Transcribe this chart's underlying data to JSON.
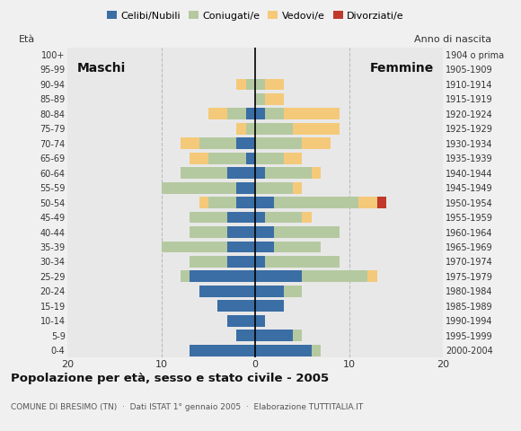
{
  "age_groups": [
    "0-4",
    "5-9",
    "10-14",
    "15-19",
    "20-24",
    "25-29",
    "30-34",
    "35-39",
    "40-44",
    "45-49",
    "50-54",
    "55-59",
    "60-64",
    "65-69",
    "70-74",
    "75-79",
    "80-84",
    "85-89",
    "90-94",
    "95-99",
    "100+"
  ],
  "birth_years": [
    "2000-2004",
    "1995-1999",
    "1990-1994",
    "1985-1989",
    "1980-1984",
    "1975-1979",
    "1970-1974",
    "1965-1969",
    "1960-1964",
    "1955-1959",
    "1950-1954",
    "1945-1949",
    "1940-1944",
    "1935-1939",
    "1930-1934",
    "1925-1929",
    "1920-1924",
    "1915-1919",
    "1910-1914",
    "1905-1909",
    "1904 o prima"
  ],
  "males": {
    "celibi": [
      7,
      2,
      3,
      4,
      6,
      7,
      3,
      3,
      3,
      3,
      2,
      2,
      3,
      1,
      2,
      0,
      1,
      0,
      0,
      0,
      0
    ],
    "coniugati": [
      0,
      0,
      0,
      0,
      0,
      1,
      4,
      7,
      4,
      4,
      3,
      8,
      5,
      4,
      4,
      1,
      2,
      0,
      1,
      0,
      0
    ],
    "vedovi": [
      0,
      0,
      0,
      0,
      0,
      0,
      0,
      0,
      0,
      0,
      1,
      0,
      0,
      2,
      2,
      1,
      2,
      0,
      1,
      0,
      0
    ],
    "divorziati": [
      0,
      0,
      0,
      0,
      0,
      0,
      0,
      0,
      0,
      0,
      0,
      0,
      0,
      0,
      0,
      0,
      0,
      0,
      0,
      0,
      0
    ]
  },
  "females": {
    "nubili": [
      6,
      4,
      1,
      3,
      3,
      5,
      1,
      2,
      2,
      1,
      2,
      0,
      1,
      0,
      0,
      0,
      1,
      0,
      0,
      0,
      0
    ],
    "coniugate": [
      1,
      1,
      0,
      0,
      2,
      7,
      8,
      5,
      7,
      4,
      9,
      4,
      5,
      3,
      5,
      4,
      2,
      1,
      1,
      0,
      0
    ],
    "vedove": [
      0,
      0,
      0,
      0,
      0,
      1,
      0,
      0,
      0,
      1,
      2,
      1,
      1,
      2,
      3,
      5,
      6,
      2,
      2,
      0,
      0
    ],
    "divorziate": [
      0,
      0,
      0,
      0,
      0,
      0,
      0,
      0,
      0,
      0,
      1,
      0,
      0,
      0,
      0,
      0,
      0,
      0,
      0,
      0,
      0
    ]
  },
  "color_celibi": "#3A6EA5",
  "color_coniugati": "#B5C9A0",
  "color_vedovi": "#F5C97A",
  "color_divorziati": "#C0392B",
  "title": "Popolazione per età, sesso e stato civile - 2005",
  "subtitle": "COMUNE DI BRESIMO (TN)  ·  Dati ISTAT 1° gennaio 2005  ·  Elaborazione TUTTITALIA.IT",
  "label_maschi": "Maschi",
  "label_femmine": "Femmine",
  "label_eta": "Età",
  "label_anno": "Anno di nascita",
  "xlim": 20,
  "background_color": "#f0f0f0",
  "plot_bg_color": "#e8e8e8",
  "grid_color": "#bbbbbb"
}
